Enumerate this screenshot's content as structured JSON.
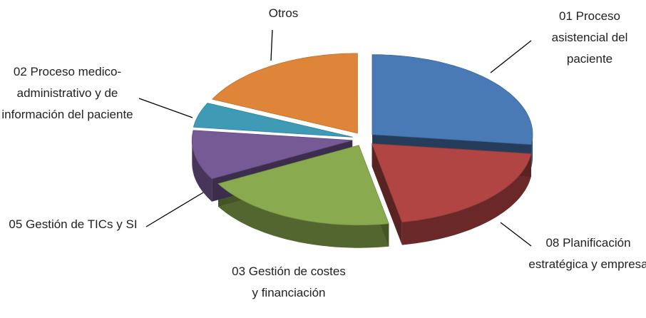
{
  "chart_data": {
    "type": "pie3d",
    "categories": [
      "01 Proceso asistencial del paciente",
      "08 Planificación estratégica y empresa",
      "03 Gestión de costes y financiación",
      "05 Gestión de TICs y SI",
      "02 Proceso medico-administrativo y de información del paciente",
      "Otros"
    ],
    "values": [
      27,
      20,
      20,
      10,
      5,
      18
    ],
    "colors": [
      "#4a7ab5",
      "#b04543",
      "#8aaa4f",
      "#765a96",
      "#3f9bb5",
      "#df853a"
    ]
  }
}
